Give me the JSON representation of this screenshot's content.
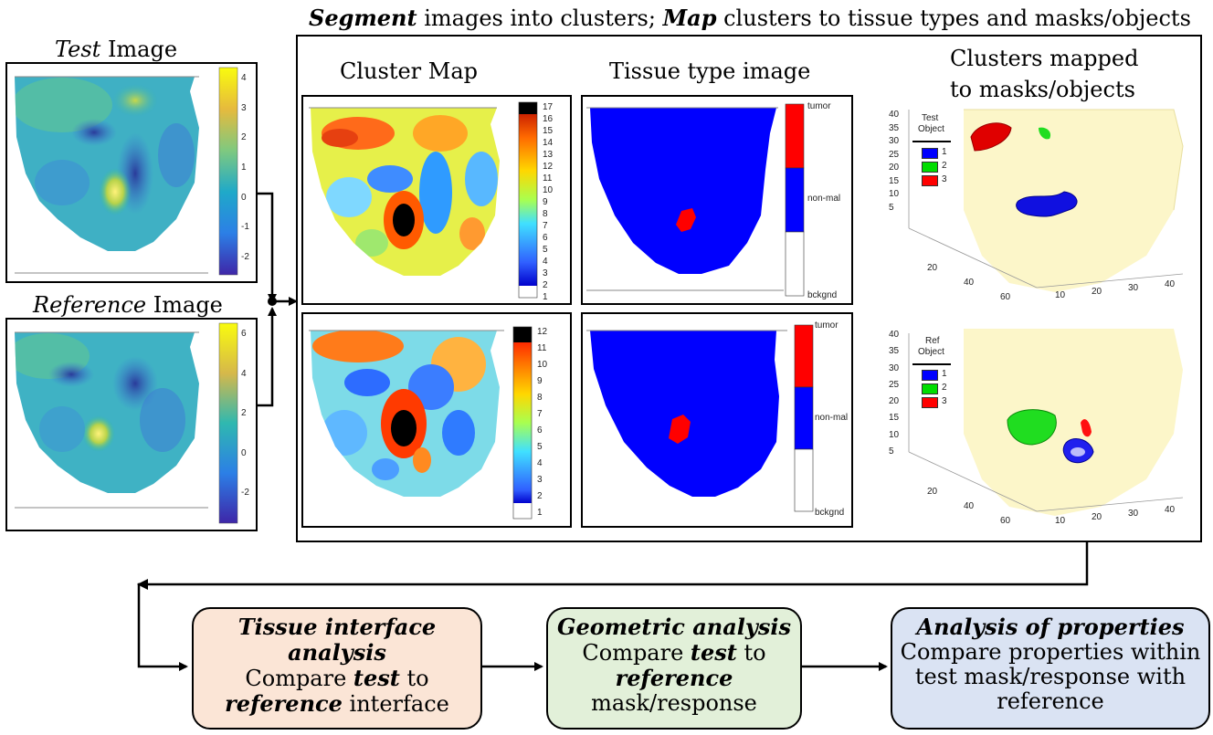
{
  "top_title": {
    "segment_word": "Segment",
    "part2": " images into clusters; ",
    "map_word": "Map",
    "part3": " clusters to tissue types and masks/objects"
  },
  "test_image": {
    "title_italic": "Test",
    "title_rest": " Image",
    "colorbar_ticks": [
      "4",
      "3",
      "2",
      "1",
      "0",
      "-1",
      "-2"
    ]
  },
  "reference_image": {
    "title_italic": "Reference",
    "title_rest": " Image",
    "colorbar_ticks": [
      "6",
      "4",
      "2",
      "0",
      "-2"
    ]
  },
  "cluster_map": {
    "title": "Cluster Map",
    "test_ticks": [
      "17",
      "16",
      "15",
      "14",
      "13",
      "12",
      "11",
      "10",
      "9",
      "8",
      "7",
      "6",
      "5",
      "4",
      "3",
      "2",
      "1"
    ],
    "ref_ticks": [
      "12",
      "11",
      "10",
      "9",
      "8",
      "7",
      "6",
      "5",
      "4",
      "3",
      "2",
      "1"
    ]
  },
  "tissue_type": {
    "title": "Tissue type image",
    "labels": [
      "tumor",
      "non-mal",
      "bckgnd"
    ],
    "colors": {
      "tumor": "#ff0000",
      "non_mal": "#0000ff",
      "bckgnd": "#ffffff"
    }
  },
  "clusters_mapped": {
    "title_line1": "Clusters mapped",
    "title_line2": "to masks/objects",
    "test_legend": {
      "title_line1": "Test",
      "title_line2": "Object",
      "items": [
        "1",
        "2",
        "3"
      ]
    },
    "ref_legend": {
      "title_line1": "Ref",
      "title_line2": "Object",
      "items": [
        "1",
        "2",
        "3"
      ]
    },
    "z_ticks": [
      "40",
      "35",
      "30",
      "25",
      "20",
      "15",
      "10",
      "5"
    ],
    "x_ticks": [
      "20",
      "40",
      "60"
    ],
    "y_ticks": [
      "10",
      "20",
      "30",
      "40"
    ],
    "legend_colors": [
      "#0000ff",
      "#00dd00",
      "#ff0000"
    ]
  },
  "boxes": {
    "tissue": {
      "title": "Tissue interface analysis",
      "l2a": "Compare ",
      "l2b": "test",
      "l2c": " to",
      "l3a": "reference",
      "l3b": " interface",
      "color": "#fbe5d6"
    },
    "geometric": {
      "title": "Geometric analysis",
      "l2a": "Compare ",
      "l2b": "test",
      "l2c": " to",
      "l3a": "reference",
      "l4": "mask/response",
      "color": "#e2f0d9"
    },
    "properties": {
      "title": "Analysis of properties",
      "l2": "Compare properties within",
      "l3": "test mask/response with",
      "l4": "reference",
      "color": "#dae3f3"
    }
  }
}
